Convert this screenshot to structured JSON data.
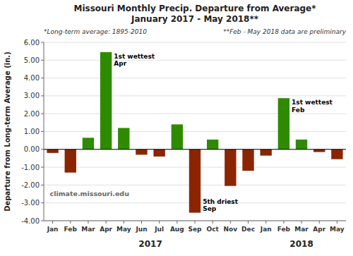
{
  "chart_data": {
    "type": "bar",
    "title": "Missouri Monthly Precip. Departure from Average*",
    "subtitle": "January 2017 - May 2018**",
    "y_label": "Departure from Long-term Average (in.)",
    "categories": [
      "Jan",
      "Feb",
      "Mar",
      "Apr",
      "May",
      "Jun",
      "Jul",
      "Aug",
      "Sep",
      "Oct",
      "Nov",
      "Dec",
      "Jan",
      "Feb",
      "Mar",
      "Apr",
      "May"
    ],
    "values": [
      -0.2,
      -1.3,
      0.65,
      5.45,
      1.2,
      -0.3,
      -0.4,
      1.4,
      -3.55,
      0.55,
      -2.05,
      -1.2,
      -0.35,
      2.87,
      0.55,
      -0.15,
      -0.55
    ],
    "colors": [
      "#8B2500",
      "#8B2500",
      "#2E8B00",
      "#2E8B00",
      "#2E8B00",
      "#8B2500",
      "#8B2500",
      "#2E8B00",
      "#8B2500",
      "#2E8B00",
      "#8B2500",
      "#8B2500",
      "#8B2500",
      "#2E8B00",
      "#2E8B00",
      "#8B2500",
      "#8B2500"
    ],
    "ylim": [
      -4.0,
      6.0
    ],
    "yticks": [
      {
        "value": -4.0,
        "label": "-4.00"
      },
      {
        "value": -3.0,
        "label": "-3.00"
      },
      {
        "value": -2.0,
        "label": "-2.00"
      },
      {
        "value": -1.0,
        "label": "-1.00"
      },
      {
        "value": 0.0,
        "label": "0.00"
      },
      {
        "value": 1.0,
        "label": "1.00"
      },
      {
        "value": 2.0,
        "label": "2.00"
      },
      {
        "value": 3.0,
        "label": "3.00"
      },
      {
        "value": 4.0,
        "label": "4.00"
      },
      {
        "value": 5.0,
        "label": "5.00"
      },
      {
        "value": 6.0,
        "label": "6.00"
      }
    ],
    "grid": true,
    "annotations": [
      "*Long-term average: 1895-2010",
      "**Feb - May 2018 data are preliminary"
    ],
    "bar_annotations": [
      {
        "text": "1st wettest\nApr",
        "index": 3
      },
      {
        "text": "5th driest\nSep",
        "index": 8
      },
      {
        "text": "1st wettest\nFeb",
        "index": 13
      }
    ],
    "watermark": "climate.missouri.edu",
    "groups": [
      {
        "label": "2017",
        "categories": [
          0,
          11
        ]
      },
      {
        "label": "2018",
        "categories": [
          12,
          16
        ]
      }
    ]
  }
}
